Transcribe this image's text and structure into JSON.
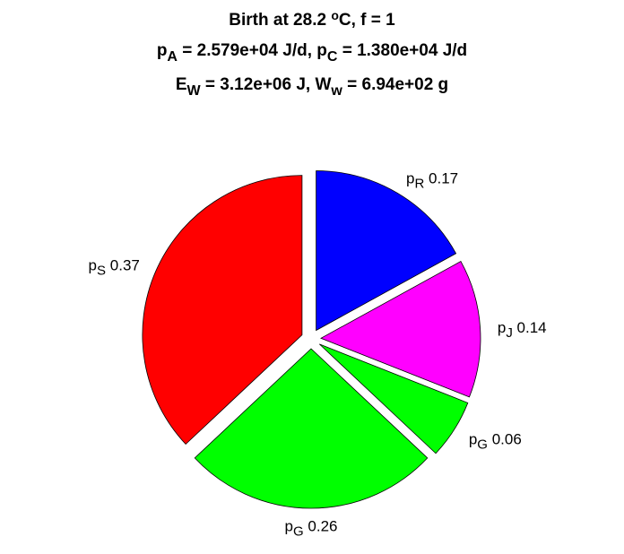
{
  "chart_data": {
    "type": "pie",
    "title_lines": [
      [
        {
          "t": "Birth at 28.2 "
        },
        {
          "t": "o",
          "sup": true
        },
        {
          "t": "C, f = 1"
        }
      ],
      [
        {
          "t": "p"
        },
        {
          "t": "A",
          "sub": true
        },
        {
          "t": " = 2.579e+04 J/d, p"
        },
        {
          "t": "C",
          "sub": true
        },
        {
          "t": " = 1.380e+04 J/d"
        }
      ],
      [
        {
          "t": "E"
        },
        {
          "t": "W",
          "sub": true
        },
        {
          "t": " = 3.12e+06 J, W"
        },
        {
          "t": "w",
          "sub": true
        },
        {
          "t": " = 6.94e+02 g"
        }
      ]
    ],
    "labels": [
      {
        "main": "p",
        "sub": "R"
      },
      {
        "main": "p",
        "sub": "J"
      },
      {
        "main": "p",
        "sub": "G"
      },
      {
        "main": "p",
        "sub": "G"
      },
      {
        "main": "p",
        "sub": "S"
      }
    ],
    "values": [
      0.17,
      0.14,
      0.06,
      0.26,
      0.37
    ],
    "colors": [
      "#0000ff",
      "#ff00ff",
      "#00ff00",
      "#00ff00",
      "#ff0000"
    ],
    "explode": true
  }
}
